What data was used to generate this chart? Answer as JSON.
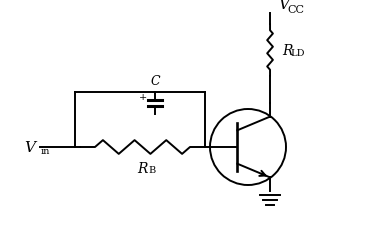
{
  "bg_color": "#ffffff",
  "line_color": "#000000",
  "vcc_label": "V",
  "vcc_sub": "CC",
  "vin_label": "V",
  "vin_sub": "in",
  "rld_label": "R",
  "rld_sub": "LD",
  "rb_label": "R",
  "rb_sub": "B",
  "c_label": "C",
  "c_plus": "+",
  "figsize": [
    3.73,
    2.32
  ],
  "dpi": 100,
  "lw": 1.4
}
